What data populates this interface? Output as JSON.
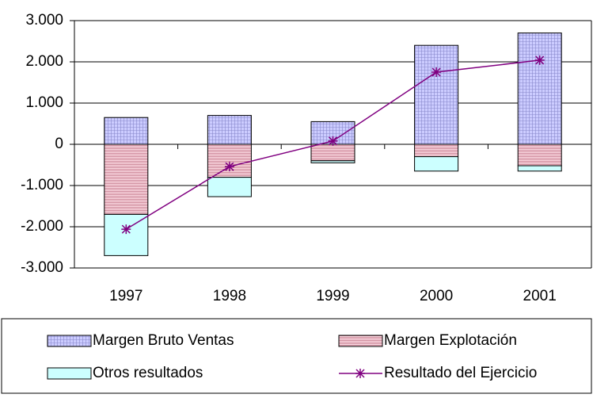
{
  "chart_data": {
    "type": "bar",
    "stacked": true,
    "categories": [
      "1997",
      "1998",
      "1999",
      "2000",
      "2001"
    ],
    "series": [
      {
        "name": "Margen Bruto Ventas",
        "color": "#ccccff",
        "values": [
          650,
          700,
          550,
          2400,
          2700
        ]
      },
      {
        "name": "Margen Explotación",
        "color": "#cc8899",
        "values": [
          -1700,
          -800,
          -400,
          -300,
          -520
        ]
      },
      {
        "name": "Otros resultados",
        "color": "#ccffff",
        "values": [
          -1000,
          -470,
          -50,
          -350,
          -130
        ]
      },
      {
        "name": "Resultado del Ejercicio",
        "color": "#800080",
        "type": "line",
        "values": [
          -2060,
          -540,
          80,
          1750,
          2040
        ]
      }
    ],
    "ylim": [
      -3000,
      3000
    ],
    "yticks": [
      {
        "value": -3000,
        "label": "-3.000"
      },
      {
        "value": -2000,
        "label": "-2.000"
      },
      {
        "value": -1000,
        "label": "-1.000"
      },
      0,
      {
        "value": 1000,
        "label": "1.000"
      },
      {
        "value": 2000,
        "label": "2.000"
      },
      {
        "value": 3000,
        "label": "3.000"
      }
    ],
    "grid": true,
    "legend": "bottom"
  }
}
